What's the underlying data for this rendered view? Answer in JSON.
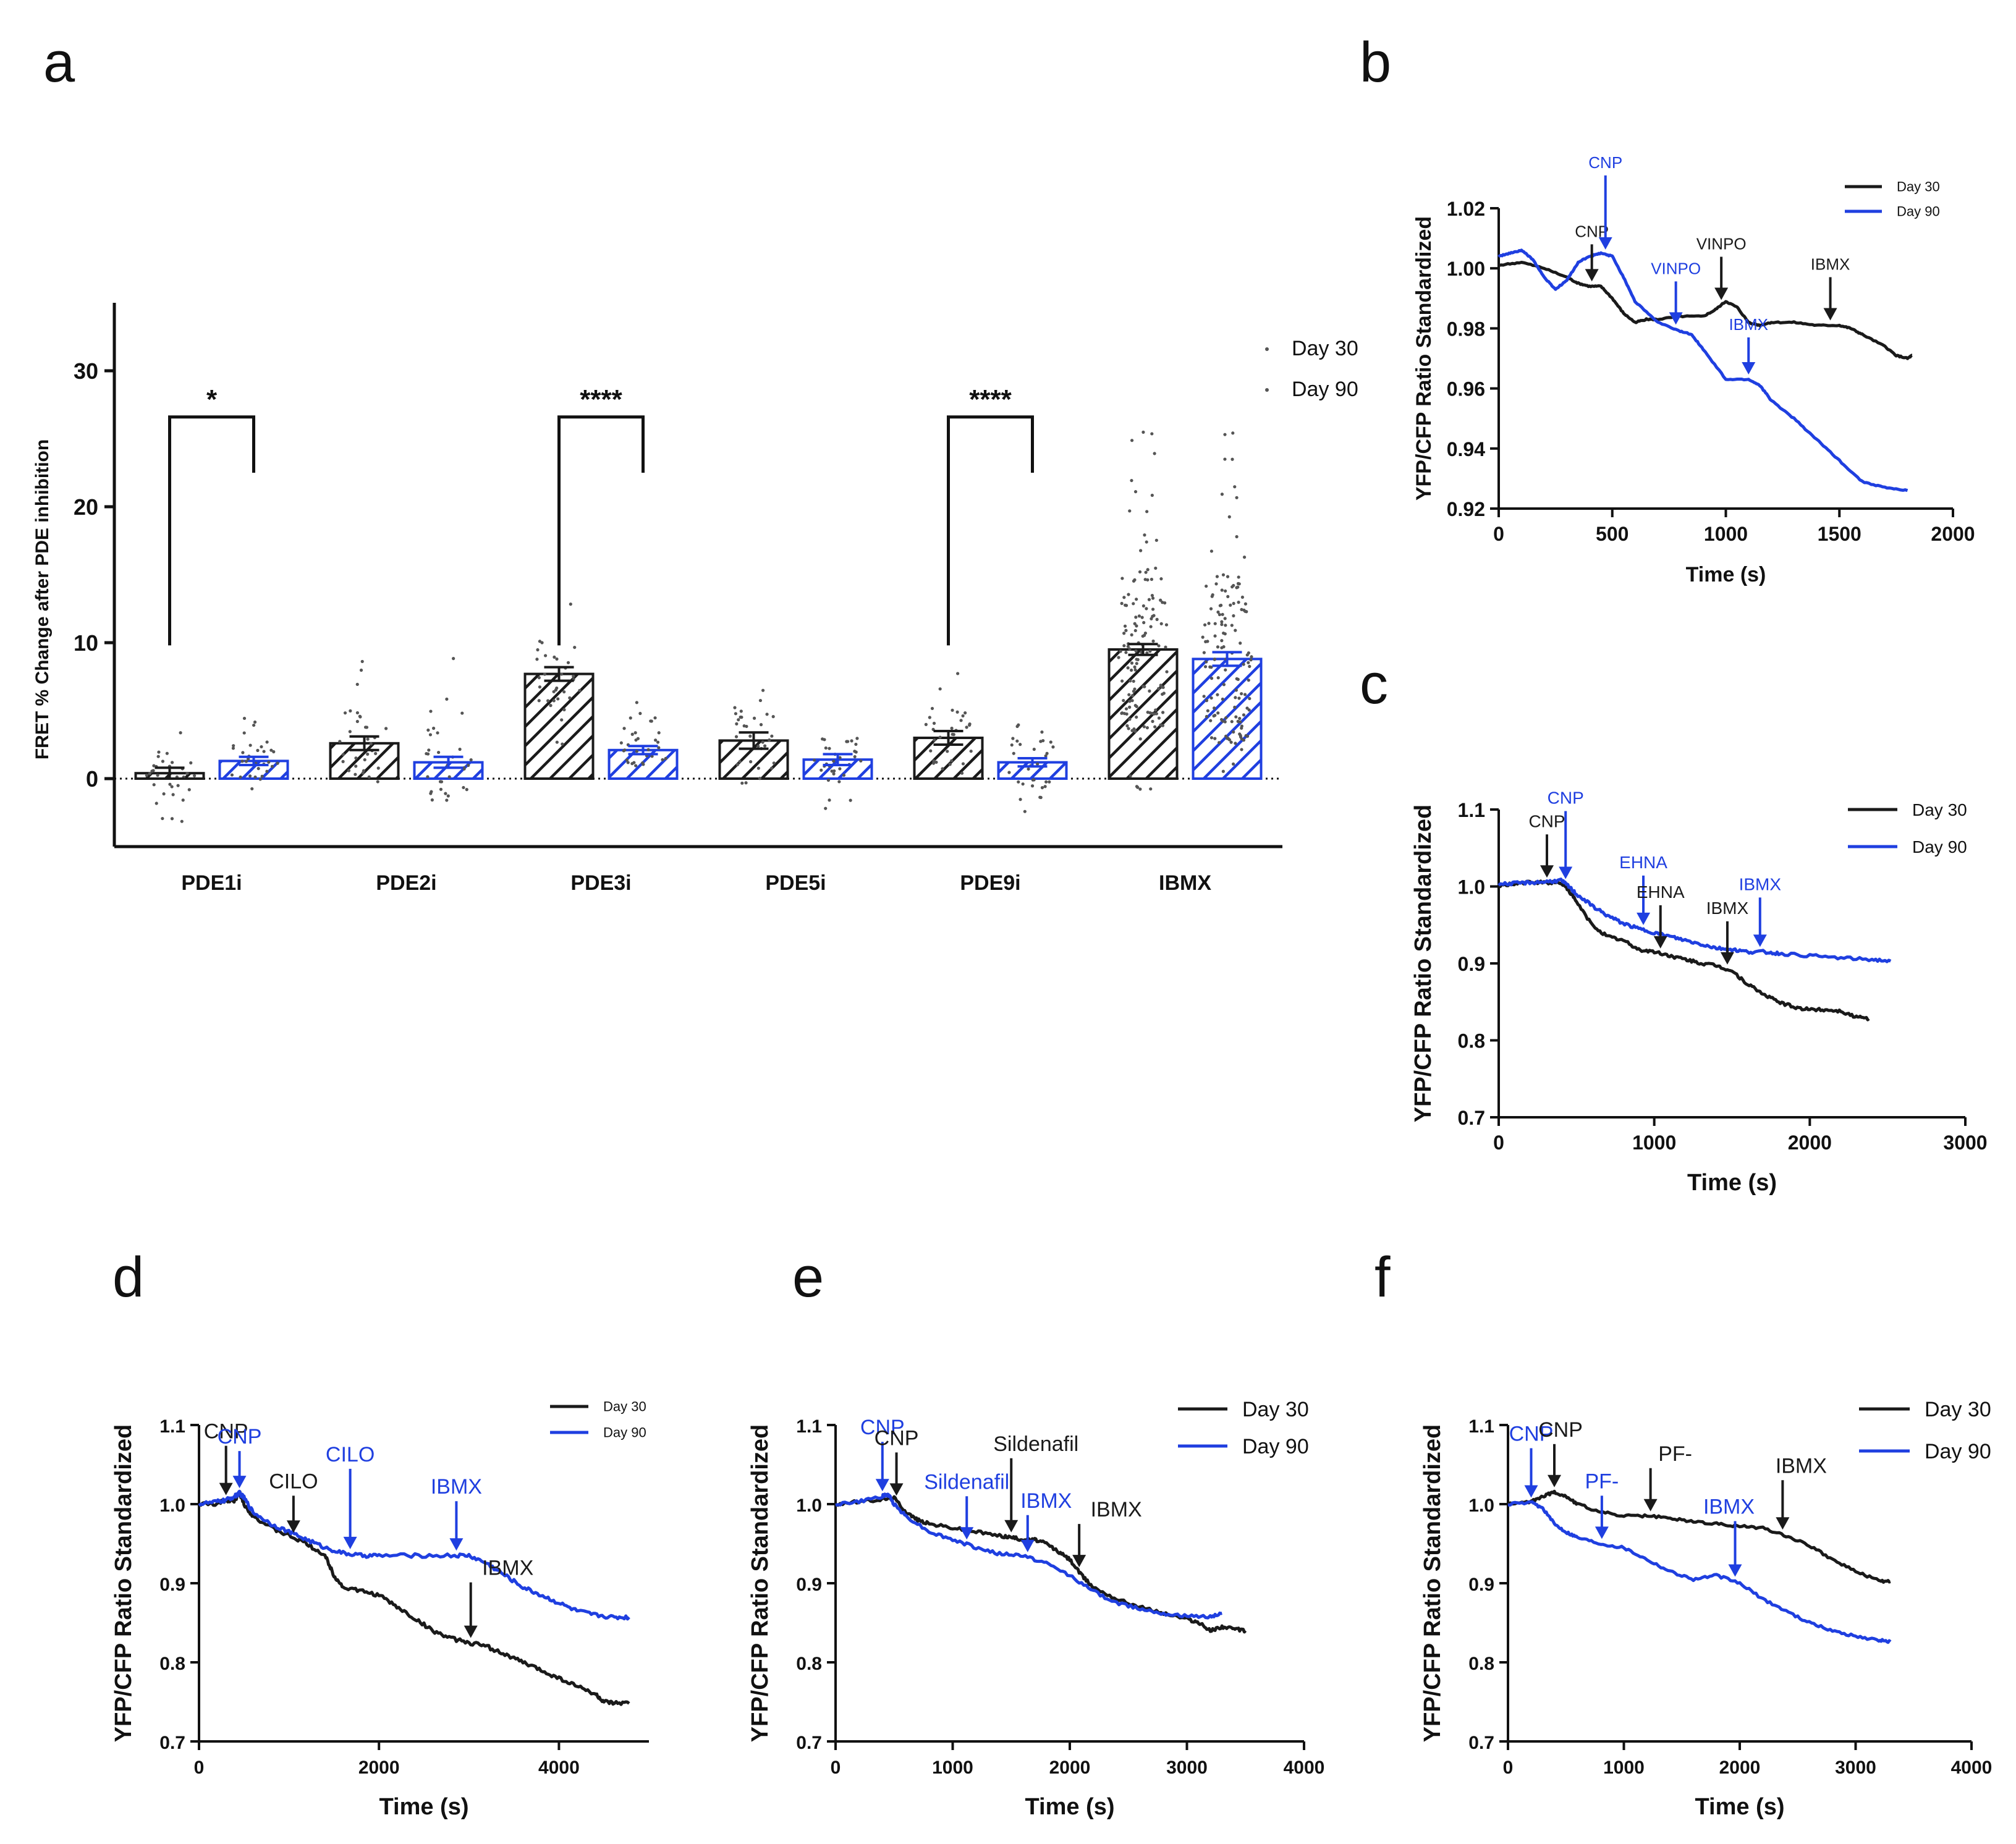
{
  "colors": {
    "day30": "#1a1a1a",
    "day90": "#1f3fe0"
  },
  "panels": {
    "a": "a",
    "b": "b",
    "c": "c",
    "d": "d",
    "e": "e",
    "f": "f"
  },
  "chart_data": [
    {
      "id": "a",
      "type": "bar",
      "title": "",
      "ylabel": "FRET % Change after PDE inhibition",
      "xlabel": "",
      "ylim": [
        -5,
        35
      ],
      "yticks": [
        0,
        10,
        20,
        30
      ],
      "categories": [
        "PDE1i",
        "PDE2i",
        "PDE3i",
        "PDE5i",
        "PDE9i",
        "IBMX"
      ],
      "series": [
        {
          "name": "Day 30",
          "values": [
            0.4,
            2.6,
            7.7,
            2.8,
            3.0,
            9.5
          ],
          "errors": [
            0.4,
            0.5,
            0.5,
            0.6,
            0.5,
            0.4
          ],
          "pattern": "hatch"
        },
        {
          "name": "Day 90",
          "values": [
            1.3,
            1.2,
            2.1,
            1.4,
            1.2,
            8.8
          ],
          "errors": [
            0.3,
            0.4,
            0.3,
            0.4,
            0.3,
            0.5
          ],
          "pattern": "hatch"
        }
      ],
      "scatter_ranges": [
        [
          [
            -3.5,
            3.6
          ],
          [
            -0.8,
            5.5
          ]
        ],
        [
          [
            -1.6,
            9.2
          ],
          [
            -3.5,
            8.9
          ]
        ],
        [
          [
            2.5,
            13.2
          ],
          [
            -0.5,
            5.8
          ]
        ],
        [
          [
            -1.2,
            7.9
          ],
          [
            -2.3,
            4.8
          ]
        ],
        [
          [
            -0.5,
            8.3
          ],
          [
            -3.5,
            4.6
          ]
        ],
        [
          [
            -1.2,
            25.7
          ],
          [
            -0.5,
            27.1
          ]
        ]
      ],
      "significance": [
        {
          "groups": "PDE1i",
          "label": "*"
        },
        {
          "groups": "PDE3i",
          "label": "****"
        },
        {
          "groups": "PDE9i",
          "label": "****"
        }
      ],
      "legend": [
        "Day 30",
        "Day 90"
      ]
    },
    {
      "id": "b",
      "type": "line",
      "xlabel": "Time (s)",
      "ylabel": "YFP/CFP Ratio Standardized",
      "xlim": [
        0,
        2000
      ],
      "ylim": [
        0.92,
        1.02
      ],
      "xticks": [
        0,
        500,
        1000,
        1500,
        2000
      ],
      "yticklabels": [
        "0.92",
        "0.94",
        "0.96",
        "0.98",
        "1.00",
        "1.02"
      ],
      "series": [
        {
          "name": "Day 30",
          "x": [
            0,
            100,
            200,
            300,
            350,
            400,
            450,
            500,
            550,
            600,
            650,
            700,
            800,
            900,
            950,
            1000,
            1050,
            1100,
            1150,
            1200,
            1300,
            1400,
            1500,
            1550,
            1600,
            1700,
            1750,
            1800,
            1820
          ],
          "y": [
            1.001,
            1.002,
            1.0,
            0.997,
            0.995,
            0.994,
            0.994,
            0.99,
            0.985,
            0.982,
            0.983,
            0.983,
            0.984,
            0.984,
            0.986,
            0.989,
            0.987,
            0.982,
            0.981,
            0.982,
            0.982,
            0.981,
            0.981,
            0.98,
            0.978,
            0.974,
            0.971,
            0.97,
            0.971
          ]
        },
        {
          "name": "Day 90",
          "x": [
            0,
            50,
            100,
            150,
            200,
            250,
            300,
            350,
            400,
            450,
            500,
            550,
            600,
            700,
            800,
            850,
            900,
            1000,
            1100,
            1150,
            1200,
            1300,
            1400,
            1500,
            1600,
            1700,
            1800
          ],
          "y": [
            1.004,
            1.005,
            1.006,
            1.003,
            0.997,
            0.993,
            0.996,
            1.002,
            1.004,
            1.005,
            1.004,
            0.997,
            0.989,
            0.982,
            0.979,
            0.978,
            0.973,
            0.963,
            0.963,
            0.961,
            0.956,
            0.95,
            0.943,
            0.936,
            0.929,
            0.927,
            0.926
          ]
        }
      ],
      "annotations": [
        {
          "label": "CNP",
          "series": "Day 30",
          "x": 410
        },
        {
          "label": "CNP",
          "series": "Day 90",
          "x": 470
        },
        {
          "label": "VINPO",
          "series": "Day 90",
          "x": 780
        },
        {
          "label": "VINPO",
          "series": "Day 30",
          "x": 980
        },
        {
          "label": "IBMX",
          "series": "Day 90",
          "x": 1100
        },
        {
          "label": "IBMX",
          "series": "Day 30",
          "x": 1460
        }
      ],
      "legend": [
        "Day 30",
        "Day 90"
      ]
    },
    {
      "id": "c",
      "type": "line",
      "xlabel": "Time (s)",
      "ylabel": "YFP/CFP Ratio Standardized",
      "xlim": [
        0,
        3000
      ],
      "ylim": [
        0.7,
        1.1
      ],
      "xticks": [
        0,
        1000,
        2000,
        3000
      ],
      "yticklabels": [
        "0.7",
        "0.8",
        "0.9",
        "1.0",
        "1.1"
      ],
      "series": [
        {
          "name": "Day 30",
          "x": [
            0,
            100,
            200,
            300,
            400,
            450,
            500,
            600,
            700,
            800,
            900,
            1000,
            1100,
            1200,
            1300,
            1400,
            1500,
            1600,
            1700,
            1800,
            1900,
            2000,
            2100,
            2200,
            2300,
            2380
          ],
          "y": [
            1.0,
            1.004,
            1.005,
            1.005,
            1.005,
            0.995,
            0.98,
            0.95,
            0.935,
            0.93,
            0.918,
            0.915,
            0.91,
            0.905,
            0.9,
            0.897,
            0.89,
            0.873,
            0.86,
            0.85,
            0.843,
            0.84,
            0.84,
            0.838,
            0.83,
            0.828
          ]
        },
        {
          "name": "Day 90",
          "x": [
            0,
            100,
            200,
            300,
            400,
            450,
            500,
            600,
            700,
            800,
            900,
            1000,
            1100,
            1200,
            1300,
            1400,
            1500,
            1600,
            1700,
            1800,
            2000,
            2200,
            2400,
            2520
          ],
          "y": [
            1.003,
            1.004,
            1.005,
            1.006,
            1.008,
            1.0,
            0.99,
            0.975,
            0.962,
            0.952,
            0.945,
            0.94,
            0.935,
            0.93,
            0.925,
            0.92,
            0.918,
            0.915,
            0.915,
            0.913,
            0.91,
            0.907,
            0.905,
            0.903
          ]
        }
      ],
      "annotations": [
        {
          "label": "CNP",
          "series": "Day 30",
          "x": 310
        },
        {
          "label": "CNP",
          "series": "Day 90",
          "x": 430
        },
        {
          "label": "EHNA",
          "series": "Day 90",
          "x": 930
        },
        {
          "label": "EHNA",
          "series": "Day 30",
          "x": 1040
        },
        {
          "label": "IBMX",
          "series": "Day 30",
          "x": 1470
        },
        {
          "label": "IBMX",
          "series": "Day 90",
          "x": 1680
        }
      ],
      "legend": [
        "Day 30",
        "Day 90"
      ]
    },
    {
      "id": "d",
      "type": "line",
      "xlabel": "Time (s)",
      "ylabel": "YFP/CFP Ratio Standardized",
      "xlim": [
        0,
        5000
      ],
      "ylim": [
        0.7,
        1.1
      ],
      "xticks": [
        0,
        2000,
        4000
      ],
      "yticklabels": [
        "0.7",
        "0.8",
        "0.9",
        "1.0",
        "1.1"
      ],
      "series": [
        {
          "name": "Day 30",
          "x": [
            0,
            200,
            300,
            400,
            450,
            500,
            600,
            800,
            1000,
            1200,
            1400,
            1500,
            1600,
            1800,
            2000,
            2200,
            2400,
            2600,
            2800,
            3000,
            3200,
            3400,
            3600,
            3800,
            4000,
            4200,
            4400,
            4500,
            4600,
            4780
          ],
          "y": [
            1.0,
            1.0,
            1.005,
            1.005,
            1.015,
            1.0,
            0.985,
            0.97,
            0.96,
            0.95,
            0.935,
            0.91,
            0.895,
            0.89,
            0.885,
            0.87,
            0.855,
            0.84,
            0.83,
            0.825,
            0.82,
            0.81,
            0.8,
            0.79,
            0.78,
            0.77,
            0.76,
            0.75,
            0.748,
            0.748
          ]
        },
        {
          "name": "Day 90",
          "x": [
            0,
            200,
            300,
            400,
            450,
            500,
            600,
            800,
            1000,
            1200,
            1400,
            1600,
            1800,
            2000,
            2400,
            2800,
            3000,
            3200,
            3400,
            3600,
            3800,
            4000,
            4200,
            4400,
            4600,
            4780
          ],
          "y": [
            1.0,
            1.003,
            1.005,
            1.01,
            1.014,
            1.008,
            0.99,
            0.975,
            0.965,
            0.955,
            0.945,
            0.938,
            0.935,
            0.935,
            0.935,
            0.935,
            0.935,
            0.925,
            0.91,
            0.895,
            0.885,
            0.875,
            0.865,
            0.86,
            0.857,
            0.857
          ]
        }
      ],
      "annotations": [
        {
          "label": "CNP",
          "series": "Day 30",
          "x": 300
        },
        {
          "label": "CNP",
          "series": "Day 90",
          "x": 450
        },
        {
          "label": "CILO",
          "series": "Day 30",
          "x": 1050
        },
        {
          "label": "CILO",
          "series": "Day 90",
          "x": 1680
        },
        {
          "label": "IBMX",
          "series": "Day 90",
          "x": 2860
        },
        {
          "label": "IBMX",
          "series": "Day 30",
          "x": 3020
        }
      ],
      "legend": [
        "Day 30",
        "Day 90"
      ]
    },
    {
      "id": "e",
      "type": "line",
      "xlabel": "Time (s)",
      "ylabel": "YFP/CFP Ratio Standardized",
      "xlim": [
        0,
        4000
      ],
      "ylim": [
        0.7,
        1.1
      ],
      "xticks": [
        0,
        1000,
        2000,
        3000,
        4000
      ],
      "yticklabels": [
        "0.7",
        "0.8",
        "0.9",
        "1.0",
        "1.1"
      ],
      "series": [
        {
          "name": "Day 30",
          "x": [
            0,
            200,
            400,
            500,
            600,
            700,
            800,
            1000,
            1200,
            1400,
            1500,
            1600,
            1700,
            1800,
            1900,
            2000,
            2100,
            2200,
            2400,
            2600,
            2800,
            3000,
            3100,
            3200,
            3300,
            3400,
            3500
          ],
          "y": [
            1.0,
            1.003,
            1.006,
            1.008,
            0.99,
            0.98,
            0.975,
            0.97,
            0.965,
            0.96,
            0.958,
            0.955,
            0.955,
            0.95,
            0.94,
            0.93,
            0.91,
            0.895,
            0.88,
            0.87,
            0.862,
            0.855,
            0.85,
            0.84,
            0.845,
            0.842,
            0.84
          ]
        },
        {
          "name": "Day 90",
          "x": [
            0,
            200,
            400,
            450,
            500,
            600,
            800,
            1000,
            1200,
            1400,
            1600,
            1800,
            2000,
            2200,
            2400,
            2600,
            2800,
            3000,
            3200,
            3300
          ],
          "y": [
            1.0,
            1.003,
            1.01,
            1.012,
            1.0,
            0.985,
            0.965,
            0.955,
            0.945,
            0.937,
            0.935,
            0.925,
            0.91,
            0.89,
            0.875,
            0.868,
            0.862,
            0.858,
            0.858,
            0.862
          ]
        }
      ],
      "annotations": [
        {
          "label": "CNP",
          "series": "Day 90",
          "x": 400
        },
        {
          "label": "CNP",
          "series": "Day 30",
          "x": 520
        },
        {
          "label": "Sildenafil",
          "series": "Day 90",
          "x": 1120
        },
        {
          "label": "Sildenafil",
          "series": "Day 30",
          "x": 1500
        },
        {
          "label": "IBMX",
          "series": "Day 90",
          "x": 1640
        },
        {
          "label": "IBMX",
          "series": "Day 30",
          "x": 2080
        }
      ],
      "legend": [
        "Day 30",
        "Day 90"
      ]
    },
    {
      "id": "f",
      "type": "line",
      "xlabel": "Time (s)",
      "ylabel": "YFP/CFP Ratio Standardized",
      "xlim": [
        0,
        4000
      ],
      "ylim": [
        0.7,
        1.1
      ],
      "xticks": [
        0,
        1000,
        2000,
        3000,
        4000
      ],
      "yticklabels": [
        "0.7",
        "0.8",
        "0.9",
        "1.0",
        "1.1"
      ],
      "series": [
        {
          "name": "Day 30",
          "x": [
            0,
            200,
            300,
            400,
            500,
            600,
            800,
            1000,
            1200,
            1400,
            1600,
            1800,
            2000,
            2200,
            2400,
            2600,
            2800,
            3000,
            3200,
            3300
          ],
          "y": [
            1.0,
            1.003,
            1.01,
            1.015,
            1.01,
            1.0,
            0.99,
            0.985,
            0.985,
            0.982,
            0.978,
            0.975,
            0.972,
            0.97,
            0.96,
            0.948,
            0.93,
            0.915,
            0.903,
            0.902
          ]
        },
        {
          "name": "Day 90",
          "x": [
            0,
            200,
            300,
            400,
            500,
            600,
            800,
            1000,
            1200,
            1400,
            1600,
            1800,
            2000,
            2200,
            2400,
            2600,
            2800,
            3000,
            3200,
            3300
          ],
          "y": [
            1.0,
            1.002,
            0.995,
            0.975,
            0.965,
            0.958,
            0.95,
            0.945,
            0.93,
            0.915,
            0.905,
            0.91,
            0.9,
            0.88,
            0.865,
            0.85,
            0.84,
            0.833,
            0.828,
            0.826
          ]
        }
      ],
      "annotations": [
        {
          "label": "CNP",
          "series": "Day 90",
          "x": 200
        },
        {
          "label": "CNP",
          "series": "Day 30",
          "x": 400
        },
        {
          "label": "PF-",
          "series": "Day 90",
          "x": 810
        },
        {
          "label": "PF-",
          "series": "Day 30",
          "x": 1230
        },
        {
          "label": "IBMX",
          "series": "Day 90",
          "x": 1960
        },
        {
          "label": "IBMX",
          "series": "Day 30",
          "x": 2370
        }
      ],
      "legend": [
        "Day 30",
        "Day 90"
      ]
    }
  ]
}
